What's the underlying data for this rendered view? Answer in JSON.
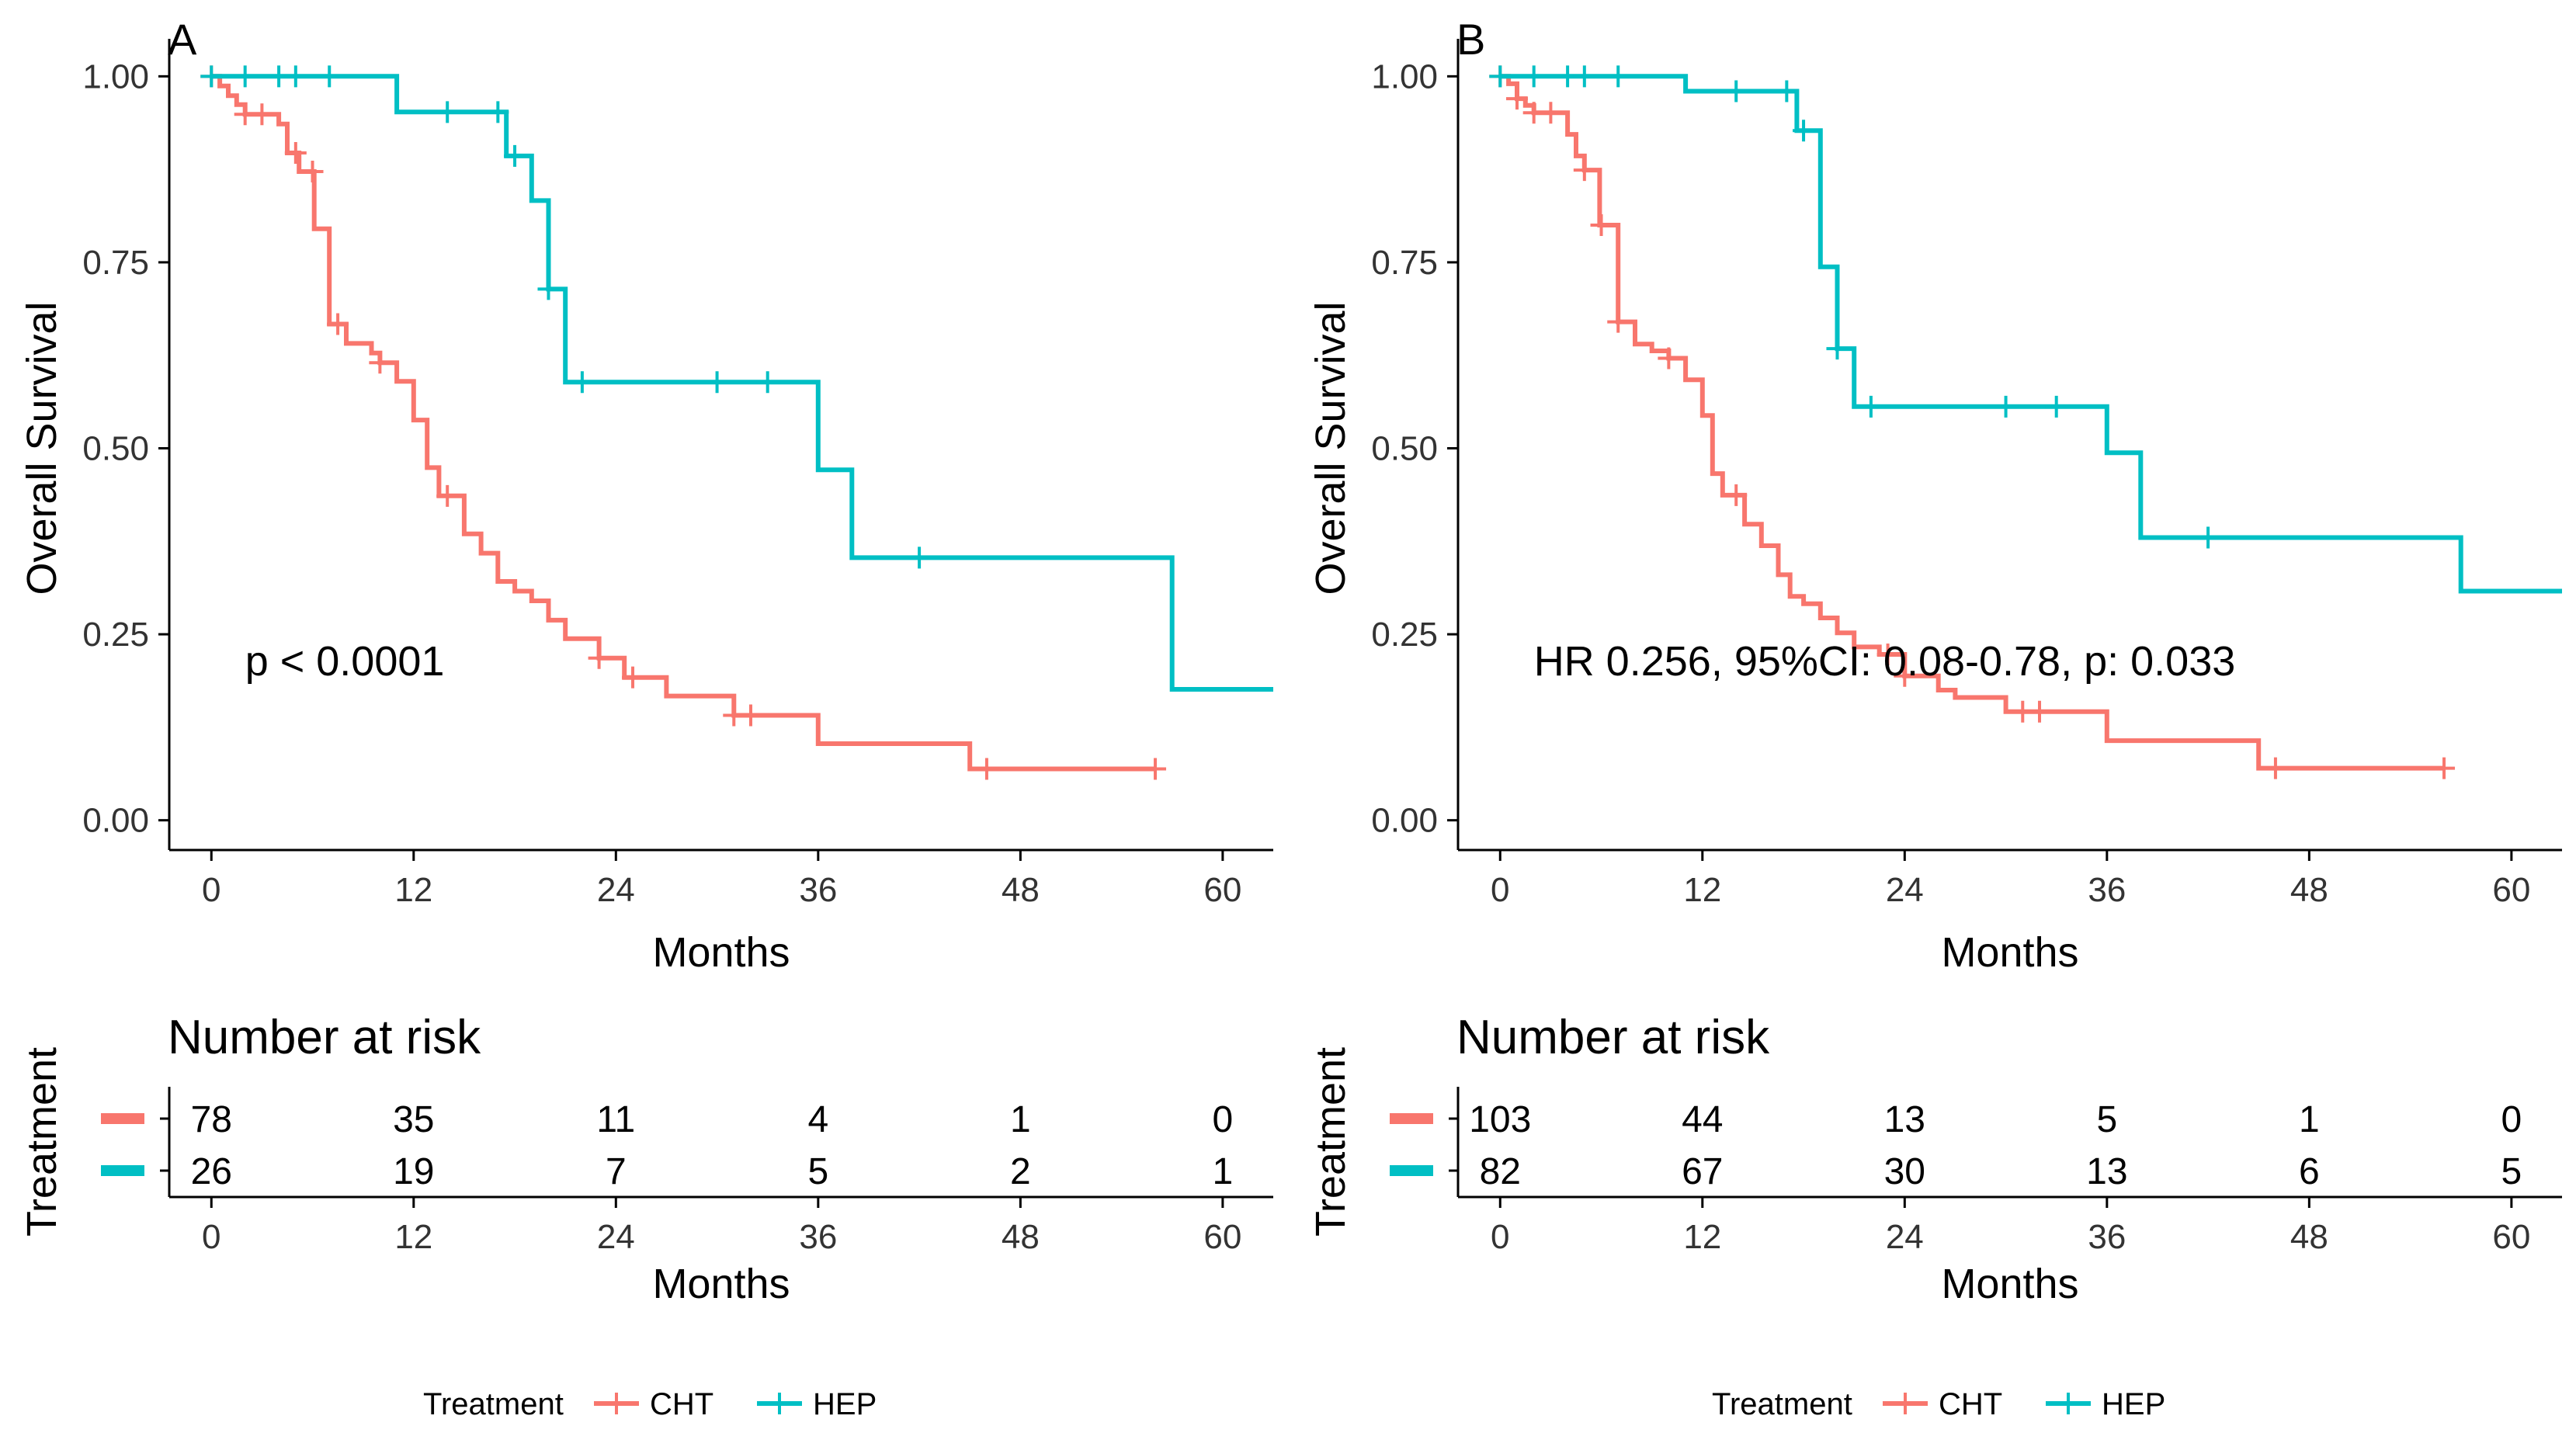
{
  "chart_data": [
    {
      "type": "line",
      "subtype": "kaplan-meier",
      "panel_label": "A",
      "xlabel": "Months",
      "ylabel": "Overall Survival",
      "xlim": [
        -2.5,
        63
      ],
      "ylim": [
        -0.04,
        1.04
      ],
      "x_ticks": [
        0,
        12,
        24,
        36,
        48,
        60
      ],
      "y_ticks": [
        "0.00",
        "0.25",
        "0.50",
        "0.75",
        "1.00"
      ],
      "grid": false,
      "annotation": "p < 0.0001",
      "annotation_anchor": [
        2,
        0.195
      ],
      "series": [
        {
          "name": "CHT",
          "color": "#F8766D",
          "steps": [
            [
              0,
              1.0
            ],
            [
              0.5,
              0.987
            ],
            [
              1,
              0.974
            ],
            [
              1.5,
              0.962
            ],
            [
              2,
              0.949
            ],
            [
              2.5,
              0.949
            ],
            [
              4,
              0.936
            ],
            [
              4.5,
              0.897
            ],
            [
              5.2,
              0.872
            ],
            [
              6.1,
              0.795
            ],
            [
              7,
              0.667
            ],
            [
              8,
              0.641
            ],
            [
              9.5,
              0.628
            ],
            [
              10,
              0.615
            ],
            [
              11,
              0.59
            ],
            [
              12,
              0.538
            ],
            [
              12.8,
              0.474
            ],
            [
              13.5,
              0.436
            ],
            [
              15,
              0.385
            ],
            [
              16,
              0.359
            ],
            [
              17,
              0.321
            ],
            [
              18,
              0.308
            ],
            [
              19,
              0.295
            ],
            [
              20,
              0.269
            ],
            [
              21,
              0.244
            ],
            [
              23,
              0.218
            ],
            [
              24.5,
              0.192
            ],
            [
              27,
              0.167
            ],
            [
              31,
              0.141
            ],
            [
              36,
              0.103
            ],
            [
              45,
              0.069
            ],
            [
              56,
              0.069
            ]
          ],
          "censor_times": [
            0,
            2,
            3,
            5,
            6,
            7.5,
            10,
            14,
            23,
            25,
            31,
            32,
            46,
            56
          ]
        },
        {
          "name": "HEP",
          "color": "#00BFC4",
          "steps": [
            [
              0,
              1.0
            ],
            [
              11,
              0.952
            ],
            [
              17.5,
              0.893
            ],
            [
              19,
              0.833
            ],
            [
              20,
              0.714
            ],
            [
              21,
              0.589
            ],
            [
              36,
              0.471
            ],
            [
              38,
              0.353
            ],
            [
              57,
              0.176
            ],
            [
              63,
              0.176
            ]
          ],
          "censor_times": [
            0,
            2,
            4,
            5,
            7,
            14,
            17,
            18,
            20,
            22,
            30,
            33,
            42
          ]
        }
      ],
      "risk_table": {
        "title": "Number at risk",
        "ylabel": "Treatment",
        "xlabel": "Months",
        "times": [
          0,
          12,
          24,
          36,
          48,
          60
        ],
        "rows": [
          {
            "name": "CHT",
            "values": [
              "78",
              "35",
              "11",
              "4",
              "1",
              "0"
            ]
          },
          {
            "name": "HEP",
            "values": [
              "26",
              "19",
              "7",
              "5",
              "2",
              "1"
            ]
          }
        ]
      },
      "legend": {
        "title": "Treatment",
        "entries": [
          "CHT",
          "HEP"
        ],
        "position": "bottom"
      }
    },
    {
      "type": "line",
      "subtype": "kaplan-meier",
      "panel_label": "B",
      "xlabel": "Months",
      "ylabel": "Overall Survival",
      "xlim": [
        -2.5,
        63
      ],
      "ylim": [
        -0.04,
        1.04
      ],
      "x_ticks": [
        0,
        12,
        24,
        36,
        48,
        60
      ],
      "y_ticks": [
        "0.00",
        "0.25",
        "0.50",
        "0.75",
        "1.00"
      ],
      "grid": false,
      "annotation": "HR 0.256, 95%CI: 0.08-0.78, p: 0.033",
      "annotation_anchor": [
        2,
        0.195
      ],
      "series": [
        {
          "name": "CHT",
          "color": "#F8766D",
          "steps": [
            [
              0,
              1.0
            ],
            [
              0.5,
              0.99
            ],
            [
              1,
              0.97
            ],
            [
              1.5,
              0.961
            ],
            [
              2,
              0.951
            ],
            [
              3.5,
              0.951
            ],
            [
              4,
              0.922
            ],
            [
              4.5,
              0.893
            ],
            [
              5,
              0.874
            ],
            [
              5.9,
              0.8
            ],
            [
              7,
              0.67
            ],
            [
              8,
              0.64
            ],
            [
              9,
              0.631
            ],
            [
              10,
              0.621
            ],
            [
              11,
              0.592
            ],
            [
              12,
              0.544
            ],
            [
              12.6,
              0.466
            ],
            [
              13.2,
              0.437
            ],
            [
              14.5,
              0.398
            ],
            [
              15.5,
              0.369
            ],
            [
              16.5,
              0.33
            ],
            [
              17.2,
              0.301
            ],
            [
              18,
              0.291
            ],
            [
              19,
              0.272
            ],
            [
              20,
              0.252
            ],
            [
              21,
              0.233
            ],
            [
              22.5,
              0.223
            ],
            [
              24,
              0.194
            ],
            [
              26,
              0.175
            ],
            [
              27,
              0.165
            ],
            [
              30,
              0.146
            ],
            [
              36,
              0.107
            ],
            [
              45,
              0.07
            ],
            [
              56,
              0.07
            ]
          ],
          "censor_times": [
            0,
            1,
            2,
            3,
            5,
            6,
            7,
            10,
            14,
            23,
            24,
            31,
            32,
            46,
            56
          ]
        },
        {
          "name": "HEP",
          "color": "#00BFC4",
          "steps": [
            [
              0,
              1.0
            ],
            [
              11,
              0.98
            ],
            [
              17.6,
              0.927
            ],
            [
              19,
              0.744
            ],
            [
              20,
              0.634
            ],
            [
              21,
              0.556
            ],
            [
              36,
              0.494
            ],
            [
              38,
              0.38
            ],
            [
              57,
              0.308
            ],
            [
              63,
              0.308
            ]
          ],
          "censor_times": [
            0,
            2,
            4,
            5,
            7,
            14,
            17,
            18,
            20,
            22,
            30,
            33,
            42
          ]
        }
      ],
      "risk_table": {
        "title": "Number at risk",
        "ylabel": "Treatment",
        "xlabel": "Months",
        "times": [
          0,
          12,
          24,
          36,
          48,
          60
        ],
        "rows": [
          {
            "name": "CHT",
            "values": [
              "103",
              "44",
              "13",
              "5",
              "1",
              "0"
            ]
          },
          {
            "name": "HEP",
            "values": [
              "82",
              "67",
              "30",
              "13",
              "6",
              "5"
            ]
          }
        ]
      },
      "legend": {
        "title": "Treatment",
        "entries": [
          "CHT",
          "HEP"
        ],
        "position": "bottom"
      }
    }
  ]
}
